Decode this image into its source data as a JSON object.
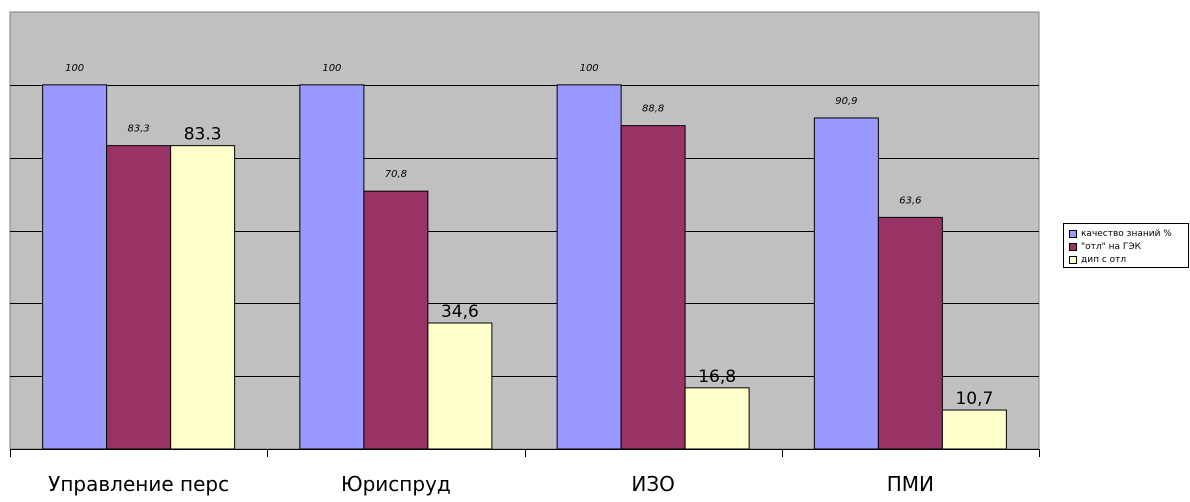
{
  "chart_data": {
    "type": "bar",
    "categories": [
      "Управление перс",
      "Юриспруд",
      "ИЗО",
      "ПМИ"
    ],
    "ylim": [
      0,
      120
    ],
    "grid": true,
    "legend_position": "right",
    "colors": {
      "plot_background": "#c0c0c0",
      "gridline": "#000000"
    },
    "series": [
      {
        "name": "качество знаний %",
        "color": "#9999ff",
        "values": [
          100,
          100,
          100,
          90.9
        ],
        "labels": [
          "100",
          "100",
          "100",
          "90,9"
        ]
      },
      {
        "name": "\"отл\" на ГЭК",
        "color": "#993366",
        "values": [
          83.3,
          70.8,
          88.8,
          63.6
        ],
        "labels": [
          "83,3",
          "70,8",
          "88,8",
          "63,6"
        ]
      },
      {
        "name": "дип с отл",
        "color": "#ffffcc",
        "values": [
          83.3,
          34.6,
          16.8,
          10.7
        ],
        "labels": [
          "83.3",
          "34,6",
          "16,8",
          "10,7"
        ]
      }
    ]
  }
}
